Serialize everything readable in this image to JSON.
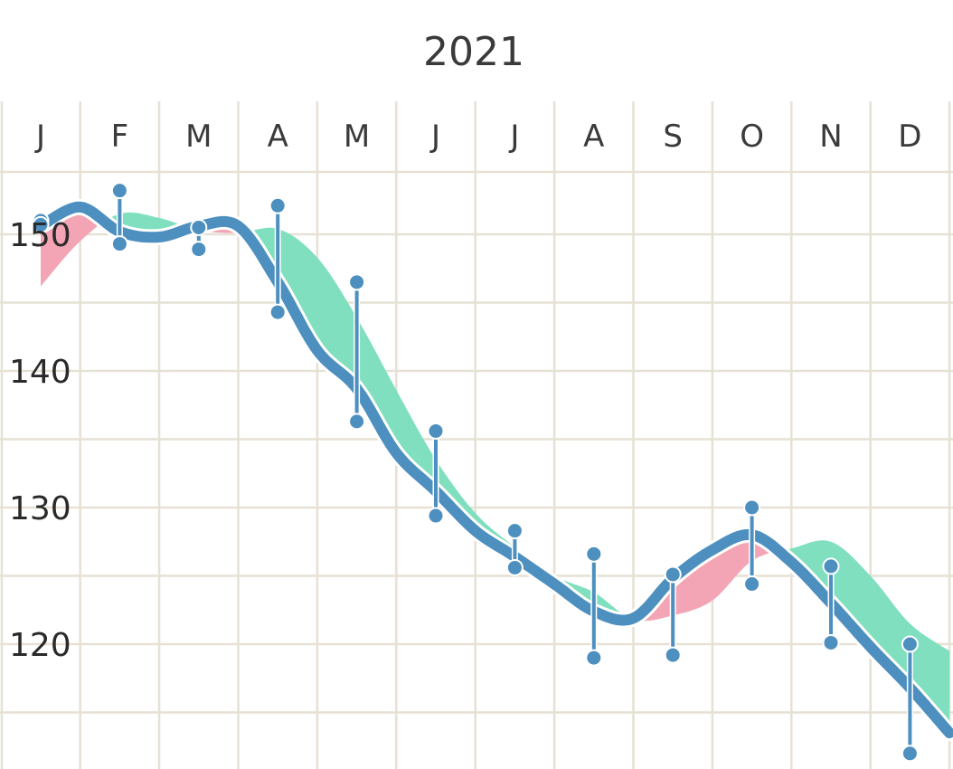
{
  "chart_data": {
    "type": "line",
    "title": "2021",
    "x_tick_labels": [
      "J",
      "F",
      "M",
      "A",
      "M",
      "J",
      "J",
      "A",
      "S",
      "O",
      "N",
      "D"
    ],
    "y_tick_labels": [
      "120",
      "130",
      "140",
      "150"
    ],
    "y_ticks": [
      120,
      130,
      140,
      150
    ],
    "ylim": [
      111.5,
      168
    ],
    "grid": true,
    "series": [
      {
        "role": "trend",
        "x": [
          0,
          0.5,
          1,
          1.5,
          2,
          2.5,
          3,
          3.5,
          4,
          4.5,
          5,
          5.5,
          6,
          6.5,
          7,
          7.5,
          8,
          8.5,
          9,
          9.5,
          10,
          10.5,
          11,
          11.5
        ],
        "values": [
          150.6,
          152.0,
          150.2,
          149.8,
          150.6,
          150.6,
          146.5,
          141.5,
          138.7,
          134.0,
          131.2,
          128.3,
          126.4,
          124.4,
          122.4,
          121.9,
          124.8,
          126.9,
          128.0,
          126.0,
          123.0,
          119.8,
          116.8,
          113.5
        ]
      },
      {
        "role": "comparison",
        "x": [
          0,
          0.5,
          1,
          1.5,
          2,
          2.5,
          3,
          3.5,
          4,
          4.5,
          5,
          5.5,
          6,
          6.5,
          7,
          7.5,
          8,
          8.5,
          9,
          9.5,
          10,
          10.5,
          11,
          11.5
        ],
        "values": [
          146.2,
          149.5,
          151.5,
          151.2,
          150.3,
          150.1,
          150.4,
          148.3,
          143.9,
          138.6,
          133.5,
          129.6,
          127.1,
          125.0,
          123.8,
          121.8,
          122.1,
          123.2,
          126.1,
          127.0,
          127.5,
          125.0,
          121.5,
          119.5
        ]
      }
    ],
    "monthly_ranges": [
      {
        "month": "J",
        "x": 0,
        "low": 150.7,
        "high": 151.0
      },
      {
        "month": "F",
        "x": 1,
        "low": 149.3,
        "high": 153.2
      },
      {
        "month": "M",
        "x": 2,
        "low": 148.9,
        "high": 150.5
      },
      {
        "month": "A",
        "x": 3,
        "low": 144.3,
        "high": 152.1
      },
      {
        "month": "M",
        "x": 4,
        "low": 136.3,
        "high": 146.5
      },
      {
        "month": "J",
        "x": 5,
        "low": 129.4,
        "high": 135.6
      },
      {
        "month": "J",
        "x": 6,
        "low": 125.6,
        "high": 128.3
      },
      {
        "month": "A",
        "x": 7,
        "low": 119.0,
        "high": 126.6
      },
      {
        "month": "S",
        "x": 8,
        "low": 119.2,
        "high": 125.1
      },
      {
        "month": "O",
        "x": 9,
        "low": 124.4,
        "high": 130.0
      },
      {
        "month": "N",
        "x": 10,
        "low": 120.1,
        "high": 125.7
      },
      {
        "month": "D",
        "x": 11,
        "low": 112.0,
        "high": 120.0
      }
    ],
    "colors": {
      "trend_line": "#4d8fbf",
      "range_marker": "#4d8fbf",
      "fill_comparison_above": "#7fdfbf",
      "fill_comparison_below": "#f3a5b5",
      "grid": "#e6e1d4",
      "text": "#3a3a3a"
    }
  }
}
